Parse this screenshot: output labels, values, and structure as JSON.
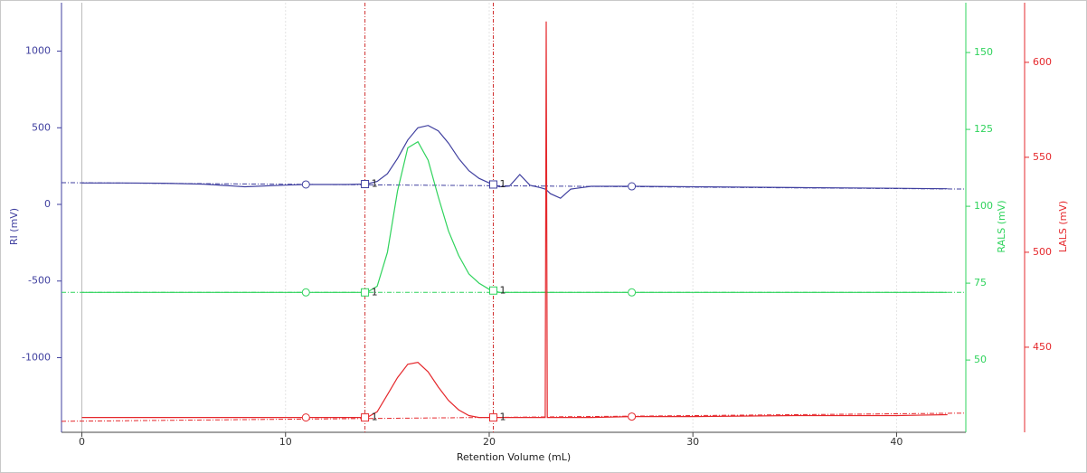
{
  "chart_data": {
    "type": "line",
    "x_label": "Retention Volume (mL)",
    "y_label": "RI (mV)",
    "y2_label": "RALS (mV)",
    "y3_label": "LALS (mV)",
    "xlim": [
      -1,
      43.4
    ],
    "xticks": [
      0,
      10,
      20,
      30,
      40
    ],
    "ylim": [
      -1487,
      1316
    ],
    "yticks": [
      1000,
      500,
      0,
      -500,
      -1000
    ],
    "y2lim": [
      26.5,
      166.2
    ],
    "y2ticks": [
      150,
      125,
      100,
      75,
      50
    ],
    "y3lim": [
      405.2,
      631.4
    ],
    "y3ticks": [
      600,
      550,
      500,
      450
    ],
    "grid": true,
    "x": [
      0,
      2,
      4,
      6,
      8,
      10,
      11,
      12,
      13,
      14,
      14.5,
      15,
      15.5,
      16,
      16.5,
      17,
      17.5,
      18,
      18.5,
      19,
      19.5,
      20,
      20.5,
      21,
      21.5,
      22,
      22.5,
      22.75,
      22.8,
      22.85,
      23,
      23.5,
      24,
      25,
      27,
      30,
      35,
      40,
      42.5
    ],
    "series": [
      {
        "name": "RI",
        "color": "#3f3f9f",
        "axis": "y",
        "baseline": [
          142,
          100
        ],
        "values": [
          140,
          140,
          138,
          132,
          115,
          126,
          130,
          130,
          130,
          133,
          150,
          200,
          300,
          420,
          500,
          515,
          480,
          400,
          300,
          220,
          170,
          140,
          115,
          120,
          195,
          125,
          110,
          100,
          95,
          90,
          70,
          40,
          100,
          118,
          118,
          115,
          110,
          105,
          102
        ]
      },
      {
        "name": "RALS",
        "color": "#2fd35c",
        "axis": "y2",
        "baseline": [
          72,
          72
        ],
        "values": [
          72,
          72,
          72,
          72,
          72,
          72,
          72,
          72,
          72,
          72,
          74,
          85,
          105,
          119,
          121,
          115,
          103,
          92,
          84,
          78,
          75,
          73,
          72,
          72,
          72,
          72,
          72,
          72,
          72,
          72,
          72,
          72,
          72,
          72,
          72,
          72,
          72,
          72,
          72
        ]
      },
      {
        "name": "LALS",
        "color": "#e5282c",
        "axis": "y3",
        "baseline": [
          411,
          415.3
        ],
        "values": [
          413,
          413,
          413,
          413,
          413,
          413,
          413,
          413,
          413,
          413,
          416,
          425,
          434,
          441,
          442,
          437,
          429,
          422,
          417,
          414,
          413,
          413,
          413,
          413,
          413,
          413,
          413,
          413,
          621.5,
          413,
          413,
          413,
          413,
          413,
          413.5,
          413.5,
          414,
          414,
          414.5
        ]
      }
    ],
    "peak_limits": [
      13.9,
      20.2
    ],
    "peak_label": "1",
    "baseline_points": [
      11,
      27
    ]
  }
}
